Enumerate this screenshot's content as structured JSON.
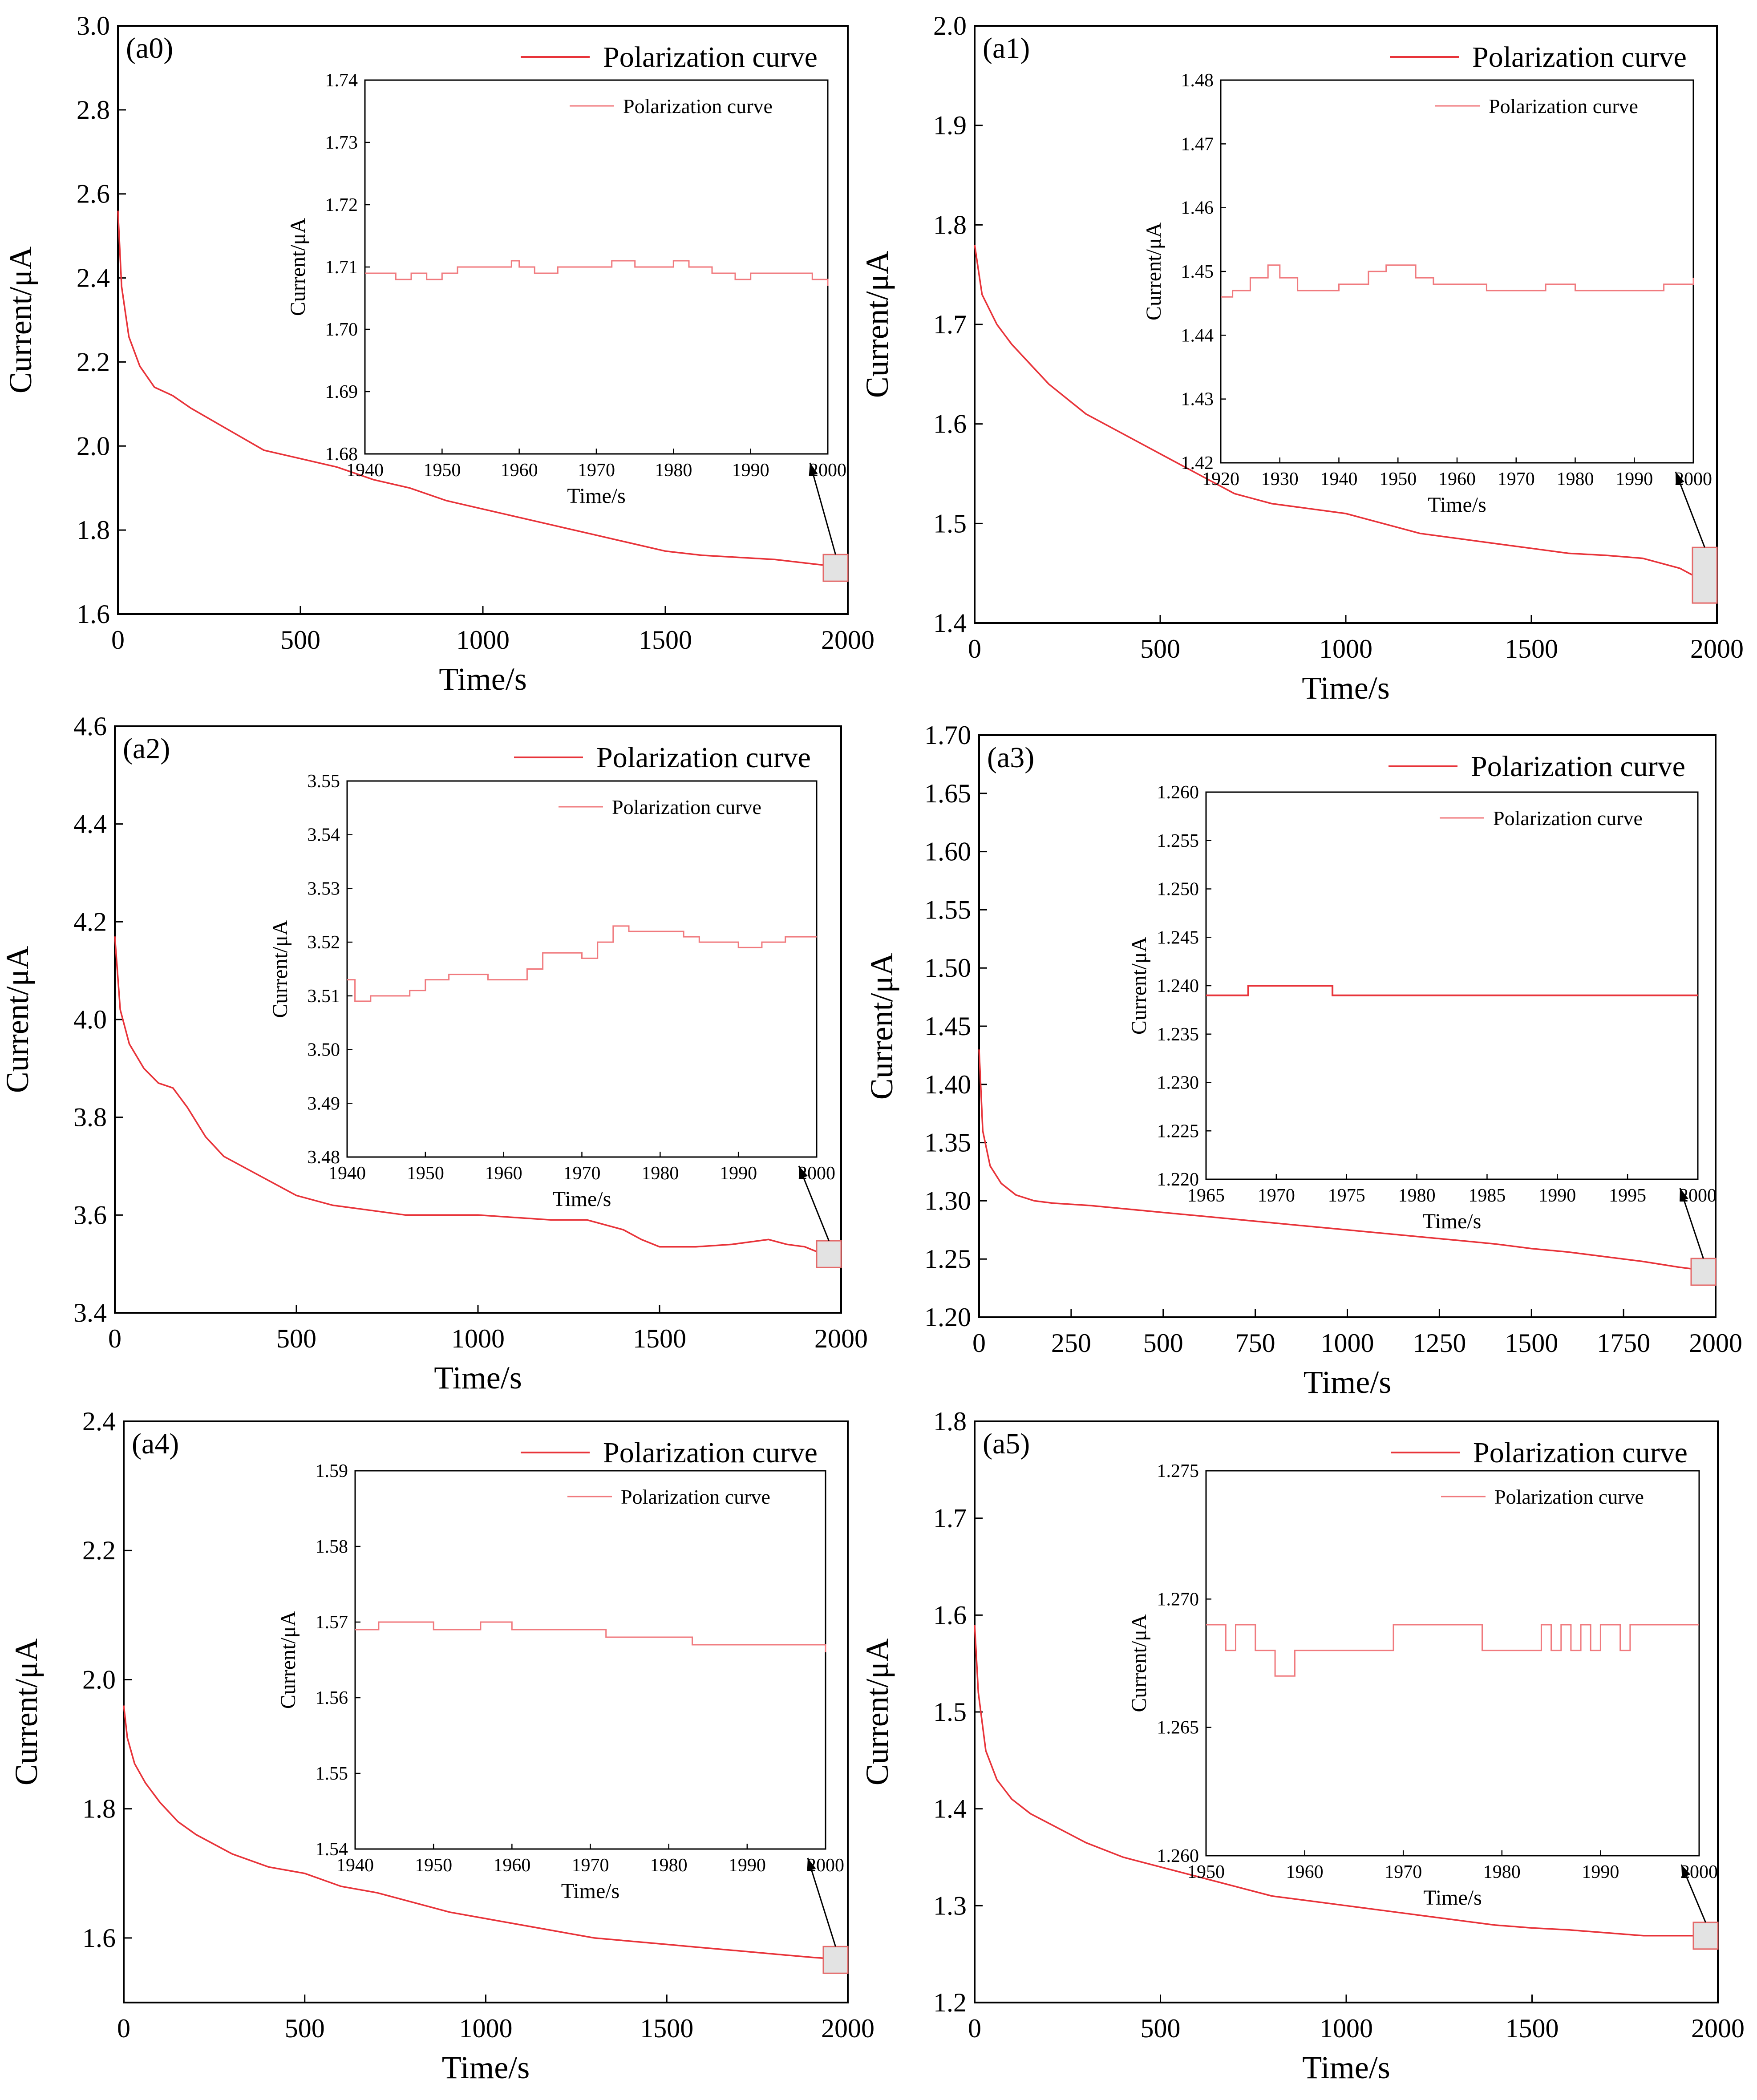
{
  "colors": {
    "curve": "#e8343a",
    "inset_curve": "#f07a7e",
    "zoom_box_fill": "#e3e3e3",
    "zoom_box_stroke": "#e46a6a"
  },
  "chart_data": [
    {
      "id": "a0",
      "type": "line",
      "label": "(a0)",
      "xlabel": "Time/s",
      "ylabel": "Current/μA",
      "legend": "Polarization curve",
      "xlim": [
        0,
        2000
      ],
      "ylim": [
        1.6,
        3.0
      ],
      "xticks": [
        "0",
        "500",
        "1000",
        "1500",
        "2000"
      ],
      "yticks": [
        "1.6",
        "1.8",
        "2.0",
        "2.2",
        "2.4",
        "2.6",
        "2.8",
        "3.0"
      ],
      "series": [
        {
          "name": "Polarization curve",
          "x": [
            0,
            10,
            30,
            60,
            100,
            150,
            200,
            300,
            400,
            500,
            600,
            700,
            800,
            900,
            1000,
            1100,
            1200,
            1300,
            1400,
            1500,
            1600,
            1700,
            1800,
            1900,
            2000
          ],
          "y": [
            2.56,
            2.38,
            2.26,
            2.19,
            2.14,
            2.12,
            2.09,
            2.04,
            1.99,
            1.97,
            1.95,
            1.92,
            1.9,
            1.87,
            1.85,
            1.83,
            1.81,
            1.79,
            1.77,
            1.75,
            1.74,
            1.735,
            1.73,
            1.72,
            1.71
          ]
        }
      ],
      "inset": {
        "legend": "Polarization curve",
        "xlabel": "Time/s",
        "ylabel": "Current/μA",
        "xlim": [
          1940,
          2000
        ],
        "ylim": [
          1.68,
          1.74
        ],
        "xticks": [
          "1940",
          "1950",
          "1960",
          "1970",
          "1980",
          "1990",
          "2000"
        ],
        "yticks": [
          "1.68",
          "1.69",
          "1.70",
          "1.71",
          "1.72",
          "1.73",
          "1.74"
        ],
        "x": [
          1940,
          1942,
          1944,
          1946,
          1948,
          1950,
          1952,
          1955,
          1958,
          1959,
          1960,
          1962,
          1965,
          1968,
          1970,
          1972,
          1975,
          1978,
          1980,
          1982,
          1985,
          1988,
          1990,
          1992,
          1995,
          1998,
          2000
        ],
        "y": [
          1.709,
          1.709,
          1.708,
          1.709,
          1.708,
          1.709,
          1.71,
          1.71,
          1.71,
          1.711,
          1.71,
          1.709,
          1.71,
          1.71,
          1.71,
          1.711,
          1.71,
          1.71,
          1.711,
          1.71,
          1.709,
          1.708,
          1.709,
          1.709,
          1.709,
          1.708,
          1.707
        ]
      }
    },
    {
      "id": "a1",
      "type": "line",
      "label": "(a1)",
      "xlabel": "Time/s",
      "ylabel": "Current/μA",
      "legend": "Polarization curve",
      "xlim": [
        0,
        2000
      ],
      "ylim": [
        1.4,
        2.0
      ],
      "xticks": [
        "0",
        "500",
        "1000",
        "1500",
        "2000"
      ],
      "yticks": [
        "1.4",
        "1.5",
        "1.6",
        "1.7",
        "1.8",
        "1.9",
        "2.0"
      ],
      "series": [
        {
          "name": "Polarization curve",
          "x": [
            0,
            20,
            60,
            100,
            150,
            200,
            300,
            400,
            500,
            600,
            700,
            800,
            900,
            1000,
            1100,
            1200,
            1300,
            1400,
            1500,
            1600,
            1700,
            1800,
            1900,
            1950,
            2000
          ],
          "y": [
            1.78,
            1.73,
            1.7,
            1.68,
            1.66,
            1.64,
            1.61,
            1.59,
            1.57,
            1.55,
            1.53,
            1.52,
            1.515,
            1.51,
            1.5,
            1.49,
            1.485,
            1.48,
            1.475,
            1.47,
            1.468,
            1.465,
            1.455,
            1.445,
            1.448
          ]
        }
      ],
      "inset": {
        "legend": "Polarization curve",
        "xlabel": "Time/s",
        "ylabel": "Current/μA",
        "xlim": [
          1920,
          2000
        ],
        "ylim": [
          1.42,
          1.48
        ],
        "xticks": [
          "1920",
          "1930",
          "1940",
          "1950",
          "1960",
          "1970",
          "1980",
          "1990",
          "2000"
        ],
        "yticks": [
          "1.42",
          "1.43",
          "1.44",
          "1.45",
          "1.46",
          "1.47",
          "1.48"
        ],
        "x": [
          1920,
          1922,
          1925,
          1928,
          1930,
          1933,
          1936,
          1940,
          1945,
          1948,
          1950,
          1953,
          1956,
          1960,
          1965,
          1970,
          1975,
          1980,
          1985,
          1990,
          1995,
          2000
        ],
        "y": [
          1.446,
          1.447,
          1.449,
          1.451,
          1.449,
          1.447,
          1.447,
          1.448,
          1.45,
          1.451,
          1.451,
          1.449,
          1.448,
          1.448,
          1.447,
          1.447,
          1.448,
          1.447,
          1.447,
          1.447,
          1.448,
          1.449
        ]
      }
    },
    {
      "id": "a2",
      "type": "line",
      "label": "(a2)",
      "xlabel": "Time/s",
      "ylabel": "Current/μA",
      "legend": "Polarization curve",
      "xlim": [
        0,
        2000
      ],
      "ylim": [
        3.4,
        4.6
      ],
      "xticks": [
        "0",
        "500",
        "1000",
        "1500",
        "2000"
      ],
      "yticks": [
        "3.4",
        "3.6",
        "3.8",
        "4.0",
        "4.2",
        "4.4",
        "4.6"
      ],
      "series": [
        {
          "name": "Polarization curve",
          "x": [
            0,
            15,
            40,
            80,
            120,
            160,
            200,
            250,
            300,
            350,
            400,
            500,
            600,
            700,
            800,
            900,
            1000,
            1100,
            1200,
            1300,
            1350,
            1400,
            1450,
            1500,
            1600,
            1700,
            1800,
            1850,
            1900,
            1950,
            2000
          ],
          "y": [
            4.17,
            4.02,
            3.95,
            3.9,
            3.87,
            3.86,
            3.82,
            3.76,
            3.72,
            3.7,
            3.68,
            3.64,
            3.62,
            3.61,
            3.6,
            3.6,
            3.6,
            3.595,
            3.59,
            3.59,
            3.58,
            3.57,
            3.55,
            3.535,
            3.535,
            3.54,
            3.55,
            3.54,
            3.535,
            3.52,
            3.52
          ]
        }
      ],
      "inset": {
        "legend": "Polarization curve",
        "xlabel": "Time/s",
        "ylabel": "Current/μA",
        "xlim": [
          1940,
          2000
        ],
        "ylim": [
          3.48,
          3.55
        ],
        "xticks": [
          "1940",
          "1950",
          "1960",
          "1970",
          "1980",
          "1990",
          "2000"
        ],
        "yticks": [
          "3.48",
          "3.49",
          "3.50",
          "3.51",
          "3.52",
          "3.53",
          "3.54",
          "3.55"
        ],
        "x": [
          1940,
          1941,
          1943,
          1945,
          1948,
          1950,
          1953,
          1955,
          1958,
          1960,
          1963,
          1965,
          1968,
          1970,
          1972,
          1974,
          1976,
          1978,
          1980,
          1983,
          1985,
          1988,
          1990,
          1993,
          1996,
          2000
        ],
        "y": [
          3.513,
          3.509,
          3.51,
          3.51,
          3.511,
          3.513,
          3.514,
          3.514,
          3.513,
          3.513,
          3.515,
          3.518,
          3.518,
          3.517,
          3.52,
          3.523,
          3.522,
          3.522,
          3.522,
          3.521,
          3.52,
          3.52,
          3.519,
          3.52,
          3.521,
          3.521
        ]
      }
    },
    {
      "id": "a3",
      "type": "line",
      "label": "(a3)",
      "xlabel": "Time/s",
      "ylabel": "Current/μA",
      "legend": "Polarization curve",
      "xlim": [
        0,
        2000
      ],
      "ylim": [
        1.2,
        1.7
      ],
      "xticks": [
        "0",
        "250",
        "500",
        "750",
        "1000",
        "1250",
        "1500",
        "1750",
        "2000"
      ],
      "yticks": [
        "1.20",
        "1.25",
        "1.30",
        "1.35",
        "1.40",
        "1.45",
        "1.50",
        "1.55",
        "1.60",
        "1.65",
        "1.70"
      ],
      "series": [
        {
          "name": "Polarization curve",
          "x": [
            0,
            10,
            30,
            60,
            100,
            150,
            200,
            250,
            300,
            400,
            500,
            600,
            700,
            800,
            900,
            1000,
            1100,
            1200,
            1300,
            1400,
            1500,
            1600,
            1700,
            1800,
            1900,
            2000
          ],
          "y": [
            1.43,
            1.36,
            1.33,
            1.315,
            1.305,
            1.3,
            1.298,
            1.297,
            1.296,
            1.293,
            1.29,
            1.287,
            1.284,
            1.281,
            1.278,
            1.275,
            1.272,
            1.269,
            1.266,
            1.263,
            1.259,
            1.256,
            1.252,
            1.248,
            1.243,
            1.239
          ]
        }
      ],
      "inset": {
        "legend": "Polarization curve",
        "xlabel": "Time/s",
        "ylabel": "Current/μA",
        "xlim": [
          1965,
          2000
        ],
        "ylim": [
          1.22,
          1.26
        ],
        "xticks": [
          "1965",
          "1970",
          "1975",
          "1980",
          "1985",
          "1990",
          "1995",
          "2000"
        ],
        "yticks": [
          "1.220",
          "1.225",
          "1.230",
          "1.235",
          "1.240",
          "1.245",
          "1.250",
          "1.255",
          "1.260"
        ],
        "x": [
          1965,
          1968,
          1968,
          1974,
          1974,
          2000
        ],
        "y": [
          1.239,
          1.239,
          1.24,
          1.24,
          1.239,
          1.239
        ]
      }
    },
    {
      "id": "a4",
      "type": "line",
      "label": "(a4)",
      "xlabel": "Time/s",
      "ylabel": "Current/μA",
      "legend": "Polarization curve",
      "xlim": [
        0,
        2000
      ],
      "ylim": [
        1.5,
        2.4
      ],
      "xticks": [
        "0",
        "500",
        "1000",
        "1500",
        "2000"
      ],
      "yticks": [
        "1.6",
        "1.8",
        "2.0",
        "2.2",
        "2.4"
      ],
      "series": [
        {
          "name": "Polarization curve",
          "x": [
            0,
            10,
            30,
            60,
            100,
            150,
            200,
            300,
            400,
            500,
            600,
            700,
            800,
            900,
            1000,
            1100,
            1200,
            1300,
            1400,
            1500,
            1600,
            1700,
            1800,
            1900,
            2000
          ],
          "y": [
            1.96,
            1.91,
            1.87,
            1.84,
            1.81,
            1.78,
            1.76,
            1.73,
            1.71,
            1.7,
            1.68,
            1.67,
            1.655,
            1.64,
            1.63,
            1.62,
            1.61,
            1.6,
            1.595,
            1.59,
            1.585,
            1.58,
            1.575,
            1.57,
            1.566
          ]
        }
      ],
      "inset": {
        "legend": "Polarization curve",
        "xlabel": "Time/s",
        "ylabel": "Current/μA",
        "xlim": [
          1940,
          2000
        ],
        "ylim": [
          1.54,
          1.59
        ],
        "xticks": [
          "1940",
          "1950",
          "1960",
          "1970",
          "1980",
          "1990",
          "2000"
        ],
        "yticks": [
          "1.54",
          "1.55",
          "1.56",
          "1.57",
          "1.58",
          "1.59"
        ],
        "x": [
          1940,
          1943,
          1946,
          1950,
          1953,
          1956,
          1958,
          1960,
          1964,
          1968,
          1970,
          1972,
          1975,
          1978,
          1980,
          1983,
          1985,
          1988,
          1990,
          1993,
          1996,
          2000
        ],
        "y": [
          1.569,
          1.57,
          1.57,
          1.569,
          1.569,
          1.57,
          1.57,
          1.569,
          1.569,
          1.569,
          1.569,
          1.568,
          1.568,
          1.568,
          1.568,
          1.567,
          1.567,
          1.567,
          1.567,
          1.567,
          1.567,
          1.566
        ]
      }
    },
    {
      "id": "a5",
      "type": "line",
      "label": "(a5)",
      "xlabel": "Time/s",
      "ylabel": "Current/μA",
      "legend": "Polarization curve",
      "xlim": [
        0,
        2000
      ],
      "ylim": [
        1.2,
        1.8
      ],
      "xticks": [
        "0",
        "500",
        "1000",
        "1500",
        "2000"
      ],
      "yticks": [
        "1.2",
        "1.3",
        "1.4",
        "1.5",
        "1.6",
        "1.7",
        "1.8"
      ],
      "series": [
        {
          "name": "Polarization curve",
          "x": [
            0,
            10,
            30,
            60,
            100,
            150,
            200,
            300,
            400,
            500,
            600,
            700,
            800,
            900,
            1000,
            1100,
            1200,
            1300,
            1400,
            1500,
            1600,
            1700,
            1800,
            1900,
            2000
          ],
          "y": [
            1.59,
            1.52,
            1.46,
            1.43,
            1.41,
            1.395,
            1.385,
            1.365,
            1.35,
            1.34,
            1.33,
            1.32,
            1.31,
            1.305,
            1.3,
            1.295,
            1.29,
            1.285,
            1.28,
            1.277,
            1.275,
            1.272,
            1.269,
            1.269,
            1.269
          ]
        }
      ],
      "inset": {
        "legend": "Polarization curve",
        "xlabel": "Time/s",
        "ylabel": "Current/μA",
        "xlim": [
          1950,
          2000
        ],
        "ylim": [
          1.26,
          1.275
        ],
        "xticks": [
          "1950",
          "1960",
          "1970",
          "1980",
          "1990",
          "2000"
        ],
        "yticks": [
          "1.260",
          "1.265",
          "1.270",
          "1.275"
        ],
        "x": [
          1950,
          1951,
          1952,
          1953,
          1954,
          1955,
          1956,
          1957,
          1958,
          1959,
          1964,
          1969,
          1978,
          1984,
          1985,
          1986,
          1987,
          1988,
          1989,
          1990,
          1992,
          1993,
          2000
        ],
        "y": [
          1.269,
          1.269,
          1.268,
          1.269,
          1.269,
          1.268,
          1.268,
          1.267,
          1.267,
          1.268,
          1.268,
          1.269,
          1.268,
          1.269,
          1.268,
          1.269,
          1.268,
          1.269,
          1.268,
          1.269,
          1.268,
          1.269,
          1.269
        ]
      }
    }
  ]
}
